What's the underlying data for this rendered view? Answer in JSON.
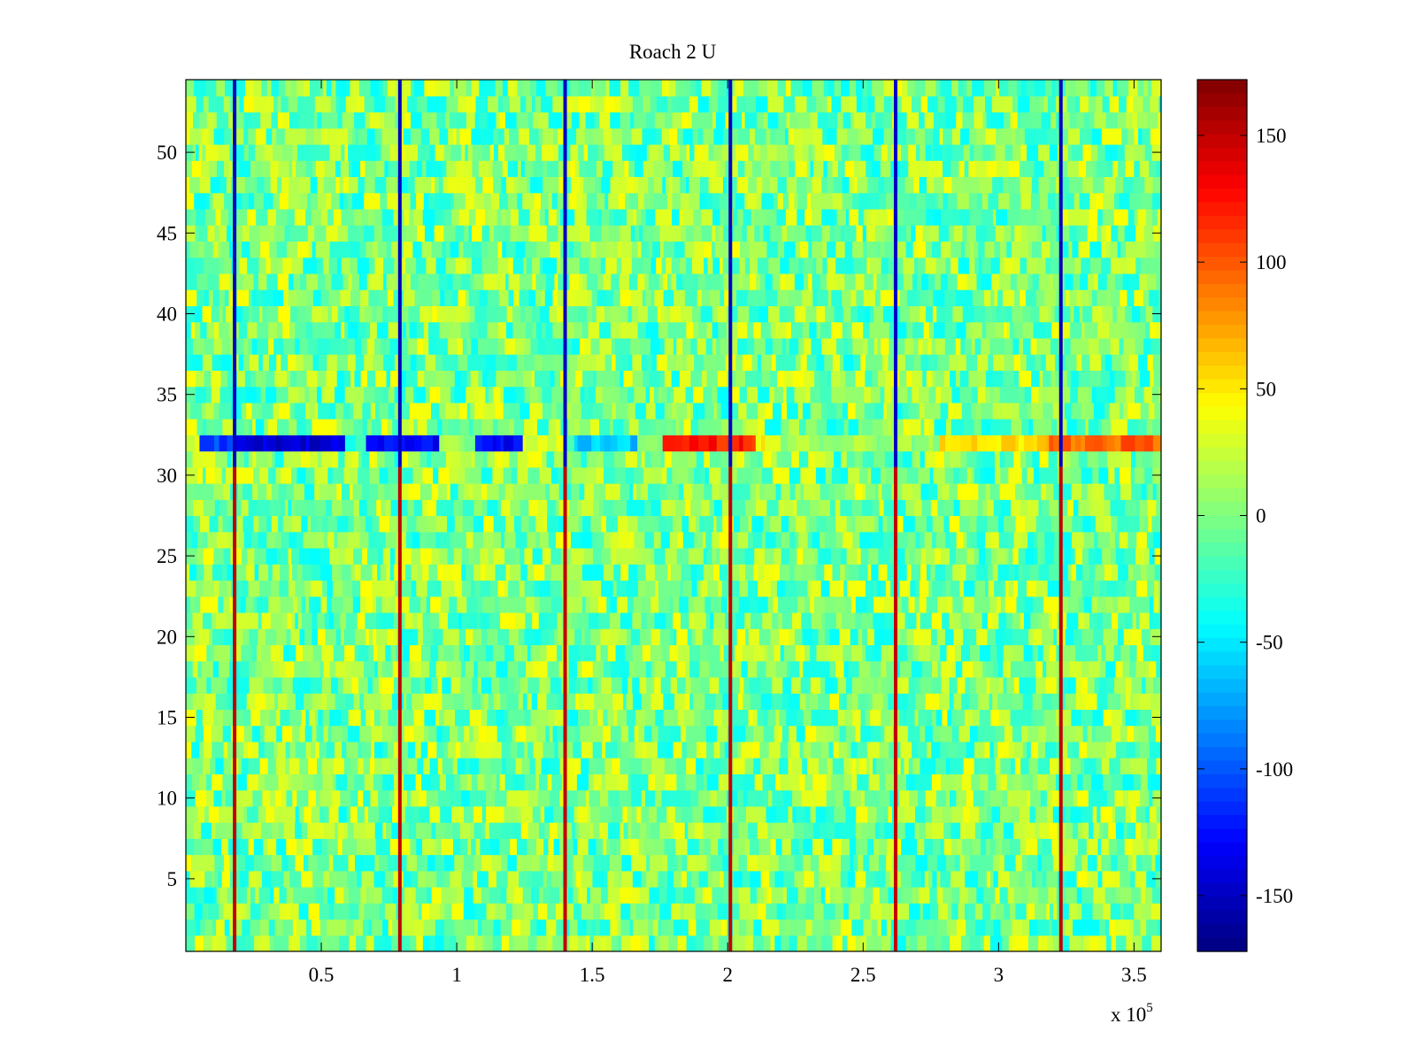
{
  "chart_data": {
    "type": "heatmap",
    "title": "Roach 2 U",
    "xlabel": "",
    "ylabel": "",
    "xlim": [
      0,
      360000
    ],
    "ylim": [
      0.5,
      54.5
    ],
    "x_scale_label": "x 10",
    "x_scale_exponent": "5",
    "x_ticks": [
      {
        "value": 50000,
        "label": "0.5"
      },
      {
        "value": 100000,
        "label": "1"
      },
      {
        "value": 150000,
        "label": "1.5"
      },
      {
        "value": 200000,
        "label": "2"
      },
      {
        "value": 250000,
        "label": "2.5"
      },
      {
        "value": 300000,
        "label": "3"
      },
      {
        "value": 350000,
        "label": "3.5"
      }
    ],
    "y_ticks": [
      {
        "value": 5,
        "label": "5"
      },
      {
        "value": 10,
        "label": "10"
      },
      {
        "value": 15,
        "label": "15"
      },
      {
        "value": 20,
        "label": "20"
      },
      {
        "value": 25,
        "label": "25"
      },
      {
        "value": 30,
        "label": "30"
      },
      {
        "value": 35,
        "label": "35"
      },
      {
        "value": 40,
        "label": "40"
      },
      {
        "value": 45,
        "label": "45"
      },
      {
        "value": 50,
        "label": "50"
      }
    ],
    "rows": 54,
    "background_range": [
      -40,
      40
    ],
    "colorbar": {
      "colormap": "jet",
      "range": [
        -172,
        172
      ],
      "ticks": [
        {
          "value": 150,
          "label": "150"
        },
        {
          "value": 100,
          "label": "100"
        },
        {
          "value": 50,
          "label": "50"
        },
        {
          "value": 0,
          "label": "0"
        },
        {
          "value": -50,
          "label": "-50"
        },
        {
          "value": -100,
          "label": "-100"
        },
        {
          "value": -150,
          "label": "-150"
        }
      ]
    },
    "vertical_stripes": [
      {
        "x": 18000,
        "upper_value": -150,
        "lower_value": 150,
        "split_row": 30
      },
      {
        "x": 79000,
        "upper_value": -150,
        "lower_value": 150,
        "split_row": 30
      },
      {
        "x": 140000,
        "upper_value": -150,
        "lower_value": 150,
        "split_row": 30
      },
      {
        "x": 201000,
        "upper_value": -150,
        "lower_value": 150,
        "split_row": 30
      },
      {
        "x": 262000,
        "upper_value": -150,
        "lower_value": 150,
        "split_row": 30
      },
      {
        "x": 323000,
        "upper_value": -150,
        "lower_value": 150,
        "split_row": 30
      }
    ],
    "highlight_row": {
      "row": 32,
      "segments": [
        {
          "x_start": 5000,
          "x_end": 16000,
          "value": -110
        },
        {
          "x_start": 16000,
          "x_end": 58000,
          "value": -140
        },
        {
          "x_start": 63000,
          "x_end": 92000,
          "value": -125
        },
        {
          "x_start": 92000,
          "x_end": 103000,
          "value": 5
        },
        {
          "x_start": 103000,
          "x_end": 123000,
          "value": -130
        },
        {
          "x_start": 123000,
          "x_end": 138000,
          "value": 30
        },
        {
          "x_start": 142000,
          "x_end": 166000,
          "value": -60
        },
        {
          "x_start": 166000,
          "x_end": 175000,
          "value": 10
        },
        {
          "x_start": 175000,
          "x_end": 210000,
          "value": 120
        },
        {
          "x_start": 210000,
          "x_end": 218000,
          "value": 40
        },
        {
          "x_start": 218000,
          "x_end": 277000,
          "value": 10
        },
        {
          "x_start": 277000,
          "x_end": 318000,
          "value": 55
        },
        {
          "x_start": 318000,
          "x_end": 360000,
          "value": 95
        }
      ]
    }
  }
}
